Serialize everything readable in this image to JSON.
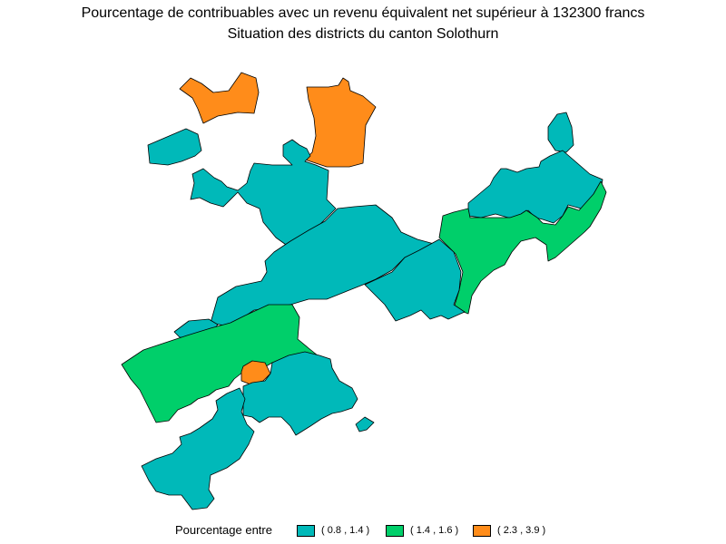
{
  "title": "Pourcentage de contribuables avec un revenu équivalent net supérieur à 132300 francs",
  "subtitle": "Situation des districts du canton Solothurn",
  "legend": {
    "label": "Pourcentage entre",
    "classes": [
      {
        "range": "( 0.8 , 1.4 )",
        "color": "#00B9B9"
      },
      {
        "range": "( 1.4 , 1.6 )",
        "color": "#00CF6A"
      },
      {
        "range": "( 2.3 , 3.9 )",
        "color": "#FF8C1A"
      }
    ]
  },
  "colors": {
    "class1": "#00B9B9",
    "class2": "#00CF6A",
    "class3": "#FF8C1A",
    "border": "#000000"
  }
}
